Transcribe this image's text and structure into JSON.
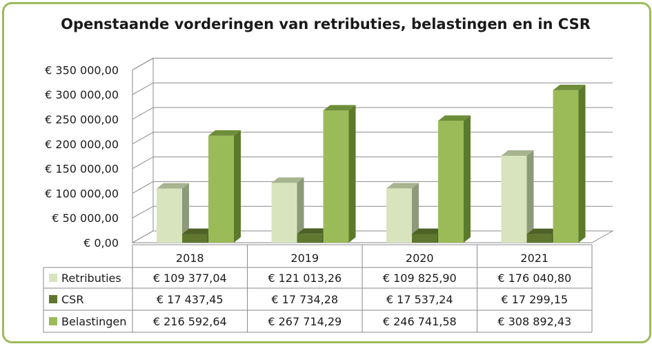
{
  "colors": {
    "frame": "#9bbb59",
    "Retributies": {
      "front": "#d7e4bd",
      "side": "#8c9a7a",
      "top": "#a6b48f"
    },
    "CSR": {
      "front": "#60772f",
      "side": "#3f4f1e",
      "top": "#4e6226"
    },
    "Belastingen": {
      "front": "#9bbb59",
      "side": "#5c7a2b",
      "top": "#6e8d38"
    }
  },
  "chart_data": {
    "type": "bar",
    "title": "Openstaande vorderingen van retributies, belastingen en in CSR",
    "categories": [
      "2018",
      "2019",
      "2020",
      "2021"
    ],
    "series": [
      {
        "name": "Retributies",
        "values": [
          109377.04,
          121013.26,
          109825.9,
          176040.8
        ],
        "labels": [
          "€ 109 377,04",
          "€ 121 013,26",
          "€ 109 825,90",
          "€ 176 040,80"
        ]
      },
      {
        "name": "CSR",
        "values": [
          17437.45,
          17734.28,
          17537.24,
          17299.15
        ],
        "labels": [
          "€ 17 437,45",
          "€ 17 734,28",
          "€ 17 537,24",
          "€ 17 299,15"
        ]
      },
      {
        "name": "Belastingen",
        "values": [
          216592.64,
          267714.29,
          246741.58,
          308892.43
        ],
        "labels": [
          "€ 216 592,64",
          "€ 267 714,29",
          "€ 246 741,58",
          "€ 308 892,43"
        ]
      }
    ],
    "ylim": [
      0,
      350000
    ],
    "yticks": [
      0,
      50000,
      100000,
      150000,
      200000,
      250000,
      300000,
      350000
    ],
    "ytick_labels": [
      "€ 0,00",
      "€ 50 000,00",
      "€ 100 000,00",
      "€ 150 000,00",
      "€ 200 000,00",
      "€ 250 000,00",
      "€ 300 000,00",
      "€ 350 000,00"
    ],
    "grid": true,
    "legend": "data-table"
  }
}
